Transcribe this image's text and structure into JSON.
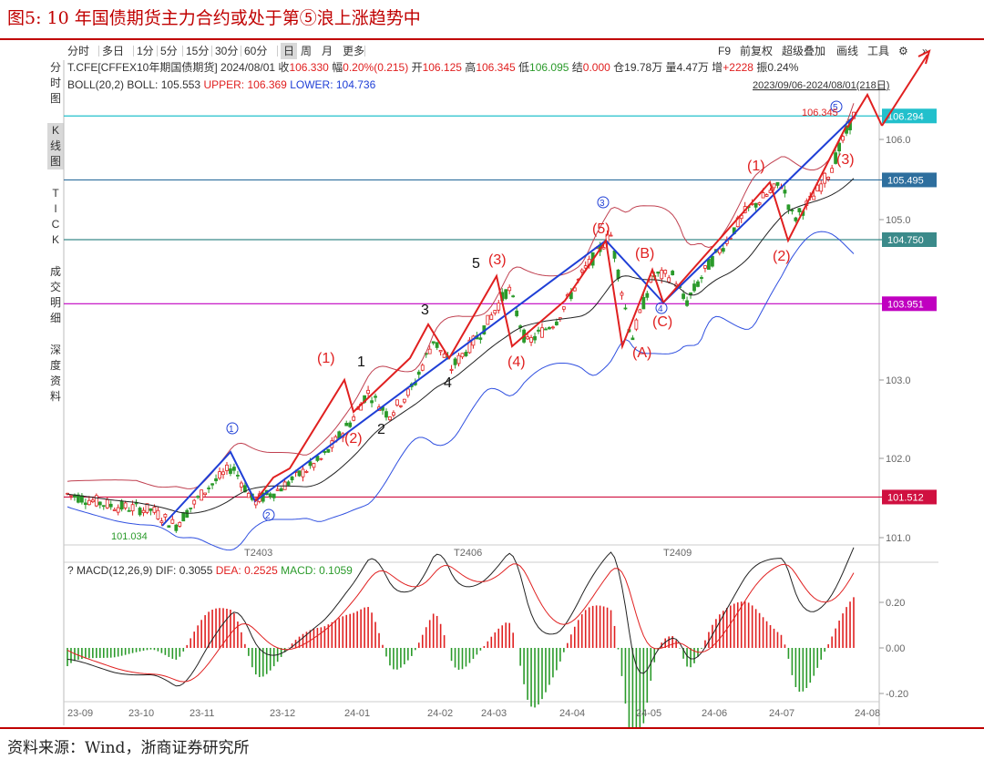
{
  "figure": {
    "title": "图5:  10 年国债期货主力合约或处于第⑤浪上涨趋势中",
    "source": "资料来源：Wind，浙商证券研究所"
  },
  "toolbar": {
    "period_buttons": [
      "分时",
      "多日",
      "1分",
      "5分",
      "15分",
      "30分",
      "60分",
      "日",
      "周",
      "月",
      "更多"
    ],
    "active_period": "日",
    "right_buttons": [
      "F9",
      "前复权",
      "超级叠加",
      "画线",
      "工具"
    ],
    "settings_icon": "gear-icon",
    "collapse_icon": "double-chevron-right-icon"
  },
  "left_tabs": [
    "分时图",
    "K线图",
    "TICK",
    "成交明细",
    "深度资料"
  ],
  "active_left_tab": "K线图",
  "quote": {
    "symbol": "T.CFE[CFFEX10年期国债期货]",
    "date": "2024/08/01",
    "close_label": "收",
    "close": "106.330",
    "change_label": "幅",
    "change": "0.20%(0.215)",
    "open_label": "开",
    "open": "106.125",
    "high_label": "高",
    "high": "106.345",
    "low_label": "低",
    "low": "106.095",
    "settle_label": "结",
    "settle": "0.000",
    "oi_label": "仓",
    "oi": "19.78万",
    "volume_label": "量",
    "volume": "4.47万",
    "increase_label": "增",
    "increase": "+2228",
    "amplitude_label": "振",
    "amplitude": "0.24%"
  },
  "boll": {
    "name": "BOLL(20,2)",
    "mid_label": "BOLL:",
    "mid": "105.553",
    "upper_label": "UPPER:",
    "upper": "106.369",
    "lower_label": "LOWER:",
    "lower": "104.736"
  },
  "range_text": "2023/09/06-2024/08/01(218日)",
  "macd": {
    "name": "MACD(12,26,9)",
    "dif_label": "DIF:",
    "dif": "0.3055",
    "dea_label": "DEA:",
    "dea": "0.2525",
    "macd_label": "MACD:",
    "macd": "0.1059",
    "help_icon": "?"
  },
  "colors": {
    "red": "#e02020",
    "blue": "#1f3fd6",
    "green": "#2a9a2a",
    "purple": "#c000c0",
    "cyan": "#22c0cc",
    "steel": "#2e6f9e",
    "teal": "#3b8a8a",
    "wine": "#d01040",
    "boll_upper": "#c04050",
    "boll_lower": "#3050e0"
  },
  "chart_data": {
    "type": "candlestick",
    "series_range": "2023/09/06-2024/08/01",
    "price_axis_ticks": [
      101.0,
      102.0,
      103.0,
      105.0,
      106.0
    ],
    "price_levels": [
      {
        "value": 106.294,
        "label": "106.294",
        "color": "#22c0cc"
      },
      {
        "value": 105.495,
        "label": "105.495",
        "color": "#2e6f9e"
      },
      {
        "value": 104.75,
        "label": "104.750",
        "color": "#3b8a8a"
      },
      {
        "value": 103.951,
        "label": "103.951",
        "color": "#c000c0"
      },
      {
        "value": 101.512,
        "label": "101.512",
        "color": "#d01040"
      }
    ],
    "min_mark": {
      "value": "101.034"
    },
    "max_mark": {
      "value": "106.345"
    },
    "contract_labels": [
      "T2403",
      "T2406",
      "T2409"
    ],
    "date_axis": [
      "23-09",
      "23-10",
      "23-11",
      "23-12",
      "24-01",
      "24-02",
      "24-03",
      "24-04",
      "24-05",
      "24-06",
      "24-07",
      "24-08"
    ],
    "macd_ticks": [
      "0.20",
      "0.00",
      "-0.20"
    ],
    "wave_labels": {
      "major_blue": [
        "①",
        "②",
        "③",
        "④",
        "⑤"
      ],
      "red_paren": [
        "(1)",
        "(2)",
        "(3)",
        "(4)",
        "(5)",
        "(A)",
        "(B)",
        "(C)",
        "(1)",
        "(2)",
        "(3)"
      ],
      "black": [
        "1",
        "2",
        "3",
        "4",
        "5"
      ]
    }
  }
}
